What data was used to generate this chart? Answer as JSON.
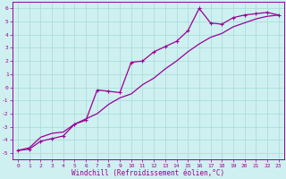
{
  "xlabel": "Windchill (Refroidissement éolien,°C)",
  "background_color": "#cff0f0",
  "grid_color": "#aadddd",
  "line_color": "#990099",
  "spine_color": "#990099",
  "xlim": [
    -0.5,
    23.5
  ],
  "ylim": [
    -5.5,
    6.5
  ],
  "xticks": [
    0,
    1,
    2,
    3,
    4,
    5,
    6,
    7,
    8,
    9,
    10,
    11,
    12,
    13,
    14,
    15,
    16,
    17,
    18,
    19,
    20,
    21,
    22,
    23
  ],
  "yticks": [
    -5,
    -4,
    -3,
    -2,
    -1,
    0,
    1,
    2,
    3,
    4,
    5,
    6
  ],
  "line1_x": [
    0,
    1,
    2,
    3,
    4,
    5,
    6,
    7,
    8,
    9,
    10,
    11,
    12,
    13,
    14,
    15,
    16,
    17,
    18,
    19,
    20,
    21,
    22,
    23
  ],
  "line1_y": [
    -4.8,
    -4.7,
    -4.1,
    -3.9,
    -3.7,
    -2.8,
    -2.5,
    -0.2,
    -0.3,
    -0.4,
    1.9,
    2.0,
    2.7,
    3.1,
    3.5,
    4.3,
    6.0,
    4.9,
    4.8,
    5.3,
    5.5,
    5.6,
    5.7,
    5.5
  ],
  "line2_x": [
    0,
    1,
    2,
    3,
    4,
    5,
    6,
    7,
    8,
    9,
    10,
    11,
    12,
    13,
    14,
    15,
    16,
    17,
    18,
    19,
    20,
    21,
    22,
    23
  ],
  "line2_y": [
    -4.8,
    -4.6,
    -3.8,
    -3.5,
    -3.4,
    -2.8,
    -2.4,
    -2.0,
    -1.3,
    -0.8,
    -0.5,
    0.2,
    0.7,
    1.4,
    2.0,
    2.7,
    3.3,
    3.8,
    4.1,
    4.6,
    4.9,
    5.2,
    5.4,
    5.5
  ],
  "xlabel_fontsize": 5.5,
  "tick_labelsize": 4.5,
  "linewidth": 0.9,
  "marker": "+",
  "markersize": 3.5
}
